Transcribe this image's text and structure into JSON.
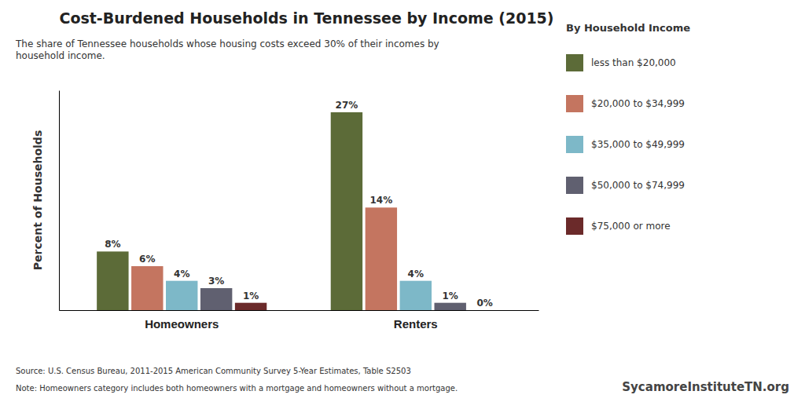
{
  "chart_data": {
    "type": "bar",
    "title": "Cost-Burdened Households in Tennessee by Income (2015)",
    "subtitle": "The share of Tennessee households whose housing costs exceed 30% of their incomes by\nhousehold income.",
    "ylabel": "Percent of Households",
    "categories": [
      "Homeowners",
      "Renters"
    ],
    "series": [
      {
        "name": "less than $20,000",
        "color": "#5c6b38",
        "values": [
          8,
          27
        ],
        "value_labels": [
          "8%",
          "27%"
        ]
      },
      {
        "name": "$20,000 to $34,999",
        "color": "#c47560",
        "values": [
          6,
          14
        ],
        "value_labels": [
          "6%",
          "14%"
        ]
      },
      {
        "name": "$35,000 to $49,999",
        "color": "#7db8c8",
        "values": [
          4,
          4
        ],
        "value_labels": [
          "4%",
          "4%"
        ]
      },
      {
        "name": "$50,000 to $74,999",
        "color": "#606070",
        "values": [
          3,
          1
        ],
        "value_labels": [
          "3%",
          "1%"
        ]
      },
      {
        "name": "$75,000 or more",
        "color": "#6b2a2a",
        "values": [
          1,
          0
        ],
        "value_labels": [
          "1%",
          "0%"
        ]
      }
    ],
    "legend_title": "By Household Income",
    "legend": "right",
    "ylim": [
      0,
      30
    ],
    "yticks": [],
    "tick_labels": "x",
    "grid": false,
    "data_labels": true,
    "annotations": [
      "Source: U.S. Census Bureau, 2011-2015 American Community Survey 5-Year Estimates, Table S2503",
      "Note: Homeowners category includes both homeowners with a mortgage and homeowners without a mortgage.",
      "SycamoreInstituteTN.org"
    ]
  }
}
